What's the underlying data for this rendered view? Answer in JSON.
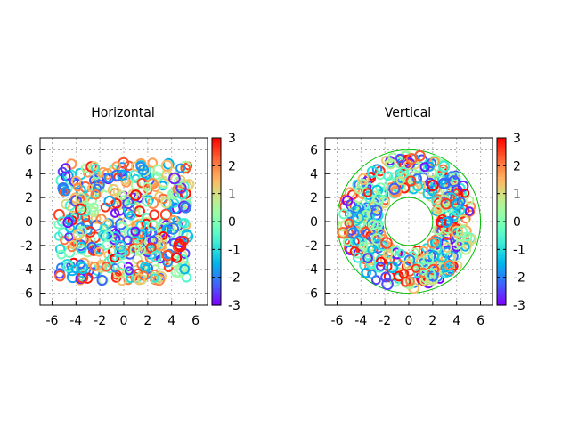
{
  "chart_data": [
    {
      "type": "scatter",
      "title": "Horizontal",
      "shape": "square",
      "xlim": [
        -7,
        7
      ],
      "ylim": [
        -7,
        7
      ],
      "xticks": [
        -6,
        -4,
        -2,
        0,
        2,
        4,
        6
      ],
      "yticks": [
        -6,
        -4,
        -2,
        0,
        2,
        4,
        6
      ],
      "grid": true,
      "marker": "open circle",
      "region": {
        "x": [
          -5.5,
          5.5
        ],
        "y": [
          -5,
          5
        ]
      },
      "point_count": 450,
      "colorbar": {
        "colormap": "rainbow",
        "range": [
          -3,
          3
        ],
        "ticks": [
          3,
          2,
          1,
          0,
          -1,
          -2,
          -3
        ],
        "placement": "right"
      }
    },
    {
      "type": "scatter",
      "title": "Vertical",
      "shape": "annulus",
      "xlim": [
        -7,
        7
      ],
      "ylim": [
        -7,
        7
      ],
      "xticks": [
        -6,
        -4,
        -2,
        0,
        2,
        4,
        6
      ],
      "yticks": [
        -6,
        -4,
        -2,
        0,
        2,
        4,
        6
      ],
      "grid": true,
      "marker": "open circle",
      "region": {
        "inner_radius": 2,
        "outer_radius": 6
      },
      "point_count": 450,
      "colorbar": {
        "colormap": "rainbow",
        "range": [
          -3,
          3
        ],
        "ticks": [
          3,
          2,
          1,
          0,
          -1,
          -2,
          -3
        ],
        "placement": "right"
      }
    }
  ]
}
